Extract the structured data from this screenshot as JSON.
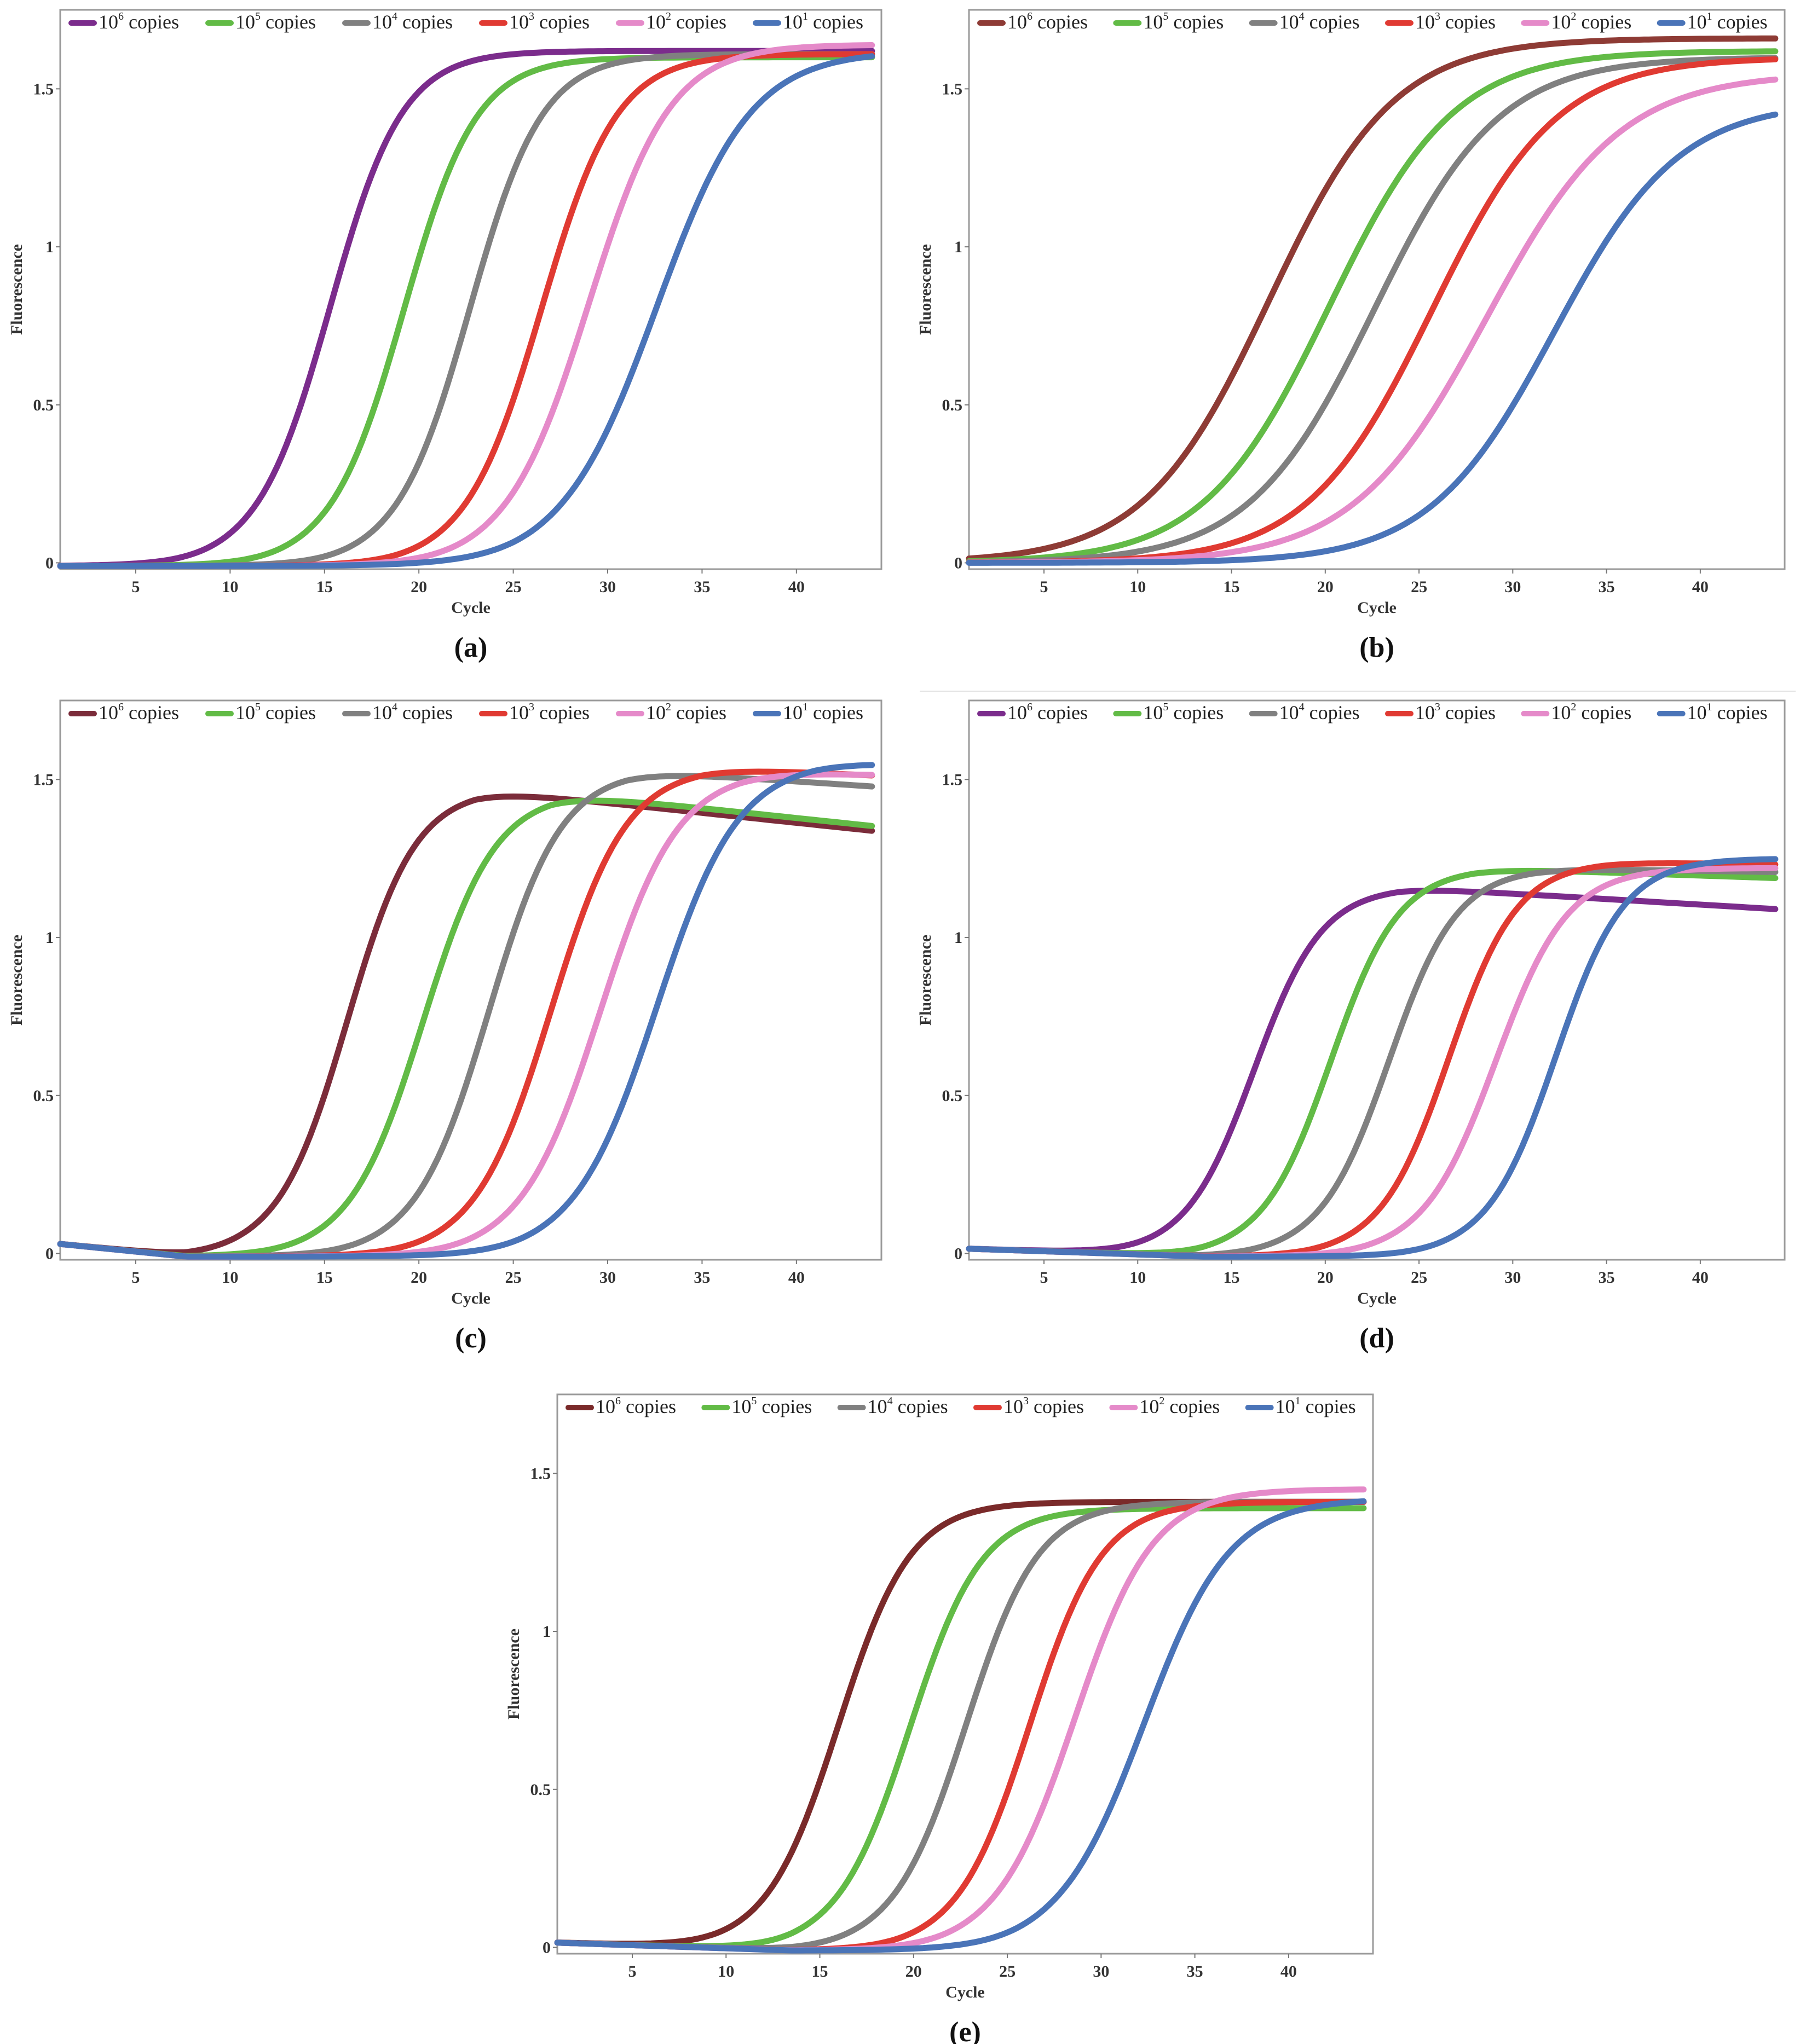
{
  "chart_data": [
    {
      "type": "line",
      "panel_label": "(a)",
      "xlabel": "Cycle",
      "ylabel": "Fluorescence",
      "xlim": [
        1,
        44.5
      ],
      "ylim": [
        -0.02,
        1.75
      ],
      "xticks": [
        5,
        10,
        15,
        20,
        25,
        30,
        35,
        40
      ],
      "xtick_labels": [
        "5",
        "10",
        "15",
        "20",
        "25",
        "30",
        "35",
        "40"
      ],
      "yticks": [
        0,
        0.5,
        1,
        1.5
      ],
      "ytick_labels": [
        "0",
        "0.5",
        "1",
        "1.5"
      ],
      "legend": "top",
      "series": [
        {
          "name": "10⁶ copies",
          "base": "10",
          "exp": "6",
          "label_suffix": " copies",
          "color": "#7b2c8c",
          "ct": 15.3,
          "k": 0.52,
          "plateau": 1.62,
          "y0": -0.01,
          "slope": 0.0
        },
        {
          "name": "10⁵ copies",
          "base": "10",
          "exp": "5",
          "label_suffix": " copies",
          "color": "#62bb46",
          "ct": 19.2,
          "k": 0.52,
          "plateau": 1.6,
          "y0": -0.01,
          "slope": 0.0
        },
        {
          "name": "10⁴ copies",
          "base": "10",
          "exp": "4",
          "label_suffix": " copies",
          "color": "#808080",
          "ct": 22.7,
          "k": 0.52,
          "plateau": 1.61,
          "y0": -0.01,
          "slope": 0.0
        },
        {
          "name": "10³ copies",
          "base": "10",
          "exp": "3",
          "label_suffix": " copies",
          "color": "#e03a32",
          "ct": 26.5,
          "k": 0.5,
          "plateau": 1.61,
          "y0": -0.01,
          "slope": 0.0
        },
        {
          "name": "10² copies",
          "base": "10",
          "exp": "2",
          "label_suffix": " copies",
          "color": "#e58ac9",
          "ct": 29.0,
          "k": 0.46,
          "plateau": 1.64,
          "y0": -0.01,
          "slope": 0.0
        },
        {
          "name": "10¹ copies",
          "base": "10",
          "exp": "1",
          "label_suffix": " copies",
          "color": "#4a74b8",
          "ct": 32.6,
          "k": 0.4,
          "plateau": 1.62,
          "y0": -0.01,
          "slope": 0.0
        }
      ]
    },
    {
      "type": "line",
      "panel_label": "(b)",
      "xlabel": "Cycle",
      "ylabel": "Fluorescence",
      "xlim": [
        1,
        44.5
      ],
      "ylim": [
        -0.02,
        1.75
      ],
      "xticks": [
        5,
        10,
        15,
        20,
        25,
        30,
        35,
        40
      ],
      "xtick_labels": [
        "5",
        "10",
        "15",
        "20",
        "25",
        "30",
        "35",
        "40"
      ],
      "yticks": [
        0,
        0.5,
        1,
        1.5
      ],
      "ytick_labels": [
        "0",
        "0.5",
        "1",
        "1.5"
      ],
      "legend": "top",
      "series": [
        {
          "name": "10⁶ copies",
          "base": "10",
          "exp": "6",
          "label_suffix": " copies",
          "color": "#8e3b35",
          "ct": 17.0,
          "k": 0.3,
          "plateau": 1.66,
          "y0": 0.0,
          "slope": 0.0
        },
        {
          "name": "10⁵ copies",
          "base": "10",
          "exp": "5",
          "label_suffix": " copies",
          "color": "#62bb46",
          "ct": 20.2,
          "k": 0.3,
          "plateau": 1.62,
          "y0": 0.0,
          "slope": 0.0
        },
        {
          "name": "10⁴ copies",
          "base": "10",
          "exp": "4",
          "label_suffix": " copies",
          "color": "#808080",
          "ct": 22.6,
          "k": 0.3,
          "plateau": 1.6,
          "y0": 0.0,
          "slope": 0.0
        },
        {
          "name": "10³ copies",
          "base": "10",
          "exp": "3",
          "label_suffix": " copies",
          "color": "#e03a32",
          "ct": 25.7,
          "k": 0.3,
          "plateau": 1.6,
          "y0": 0.0,
          "slope": 0.0
        },
        {
          "name": "10² copies",
          "base": "10",
          "exp": "2",
          "label_suffix": " copies",
          "color": "#e58ac9",
          "ct": 28.6,
          "k": 0.28,
          "plateau": 1.55,
          "y0": 0.0,
          "slope": 0.0
        },
        {
          "name": "10¹ copies",
          "base": "10",
          "exp": "1",
          "label_suffix": " copies",
          "color": "#4a74b8",
          "ct": 32.2,
          "k": 0.3,
          "plateau": 1.46,
          "y0": 0.0,
          "slope": 0.0
        }
      ]
    },
    {
      "type": "line",
      "panel_label": "(c)",
      "xlabel": "Cycle",
      "ylabel": "Fluorescence",
      "xlim": [
        1,
        44.5
      ],
      "ylim": [
        -0.02,
        1.75
      ],
      "xticks": [
        5,
        10,
        15,
        20,
        25,
        30,
        35,
        40
      ],
      "xtick_labels": [
        "5",
        "10",
        "15",
        "20",
        "25",
        "30",
        "35",
        "40"
      ],
      "yticks": [
        0,
        0.5,
        1,
        1.5
      ],
      "ytick_labels": [
        "0",
        "0.5",
        "1",
        "1.5"
      ],
      "legend": "top",
      "series": [
        {
          "name": "10⁶ copies",
          "base": "10",
          "exp": "6",
          "label_suffix": " copies",
          "color": "#7b2c3a",
          "ct": 16.2,
          "k": 0.55,
          "plateau": 1.47,
          "y0": 0.03,
          "slope": -0.006,
          "decay": 0.0063,
          "decay_start": 23
        },
        {
          "name": "10⁵ copies",
          "base": "10",
          "exp": "5",
          "label_suffix": " copies",
          "color": "#62bb46",
          "ct": 20.2,
          "k": 0.52,
          "plateau": 1.46,
          "y0": 0.03,
          "slope": -0.006,
          "decay": 0.0063,
          "decay_start": 27
        },
        {
          "name": "10⁴ copies",
          "base": "10",
          "exp": "4",
          "label_suffix": " copies",
          "color": "#808080",
          "ct": 23.7,
          "k": 0.52,
          "plateau": 1.53,
          "y0": 0.03,
          "slope": -0.006,
          "decay": 0.004,
          "decay_start": 31
        },
        {
          "name": "10³ copies",
          "base": "10",
          "exp": "3",
          "label_suffix": " copies",
          "color": "#e03a32",
          "ct": 27.0,
          "k": 0.5,
          "plateau": 1.54,
          "y0": 0.03,
          "slope": -0.006,
          "decay": 0.003,
          "decay_start": 35
        },
        {
          "name": "10² copies",
          "base": "10",
          "exp": "2",
          "label_suffix": " copies",
          "color": "#e58ac9",
          "ct": 29.6,
          "k": 0.48,
          "plateau": 1.53,
          "y0": 0.03,
          "slope": -0.006,
          "decay": 0.002,
          "decay_start": 37
        },
        {
          "name": "10¹ copies",
          "base": "10",
          "exp": "1",
          "label_suffix": " copies",
          "color": "#4a74b8",
          "ct": 32.6,
          "k": 0.46,
          "plateau": 1.56,
          "y0": 0.03,
          "slope": -0.006,
          "decay": 0.002,
          "decay_start": 41
        }
      ]
    },
    {
      "type": "line",
      "panel_label": "(d)",
      "xlabel": "Cycle",
      "ylabel": "Fluorescence",
      "xlim": [
        1,
        44.5
      ],
      "ylim": [
        -0.02,
        1.75
      ],
      "xticks": [
        5,
        10,
        15,
        20,
        25,
        30,
        35,
        40
      ],
      "xtick_labels": [
        "5",
        "10",
        "15",
        "20",
        "25",
        "30",
        "35",
        "40"
      ],
      "yticks": [
        0,
        0.5,
        1,
        1.5
      ],
      "ytick_labels": [
        "0",
        "0.5",
        "1",
        "1.5"
      ],
      "legend": "top",
      "series": [
        {
          "name": "10⁶ copies",
          "base": "10",
          "exp": "6",
          "label_suffix": " copies",
          "color": "#7b2c8c",
          "ct": 16.2,
          "k": 0.55,
          "plateau": 1.16,
          "y0": 0.015,
          "slope": -0.002,
          "decay": 0.0035,
          "decay_start": 24
        },
        {
          "name": "10⁵ copies",
          "base": "10",
          "exp": "5",
          "label_suffix": " copies",
          "color": "#62bb46",
          "ct": 20.3,
          "k": 0.55,
          "plateau": 1.22,
          "y0": 0.015,
          "slope": -0.002,
          "decay": 0.002,
          "decay_start": 28
        },
        {
          "name": "10⁴ copies",
          "base": "10",
          "exp": "4",
          "label_suffix": " copies",
          "color": "#808080",
          "ct": 23.4,
          "k": 0.55,
          "plateau": 1.22,
          "y0": 0.015,
          "slope": -0.002,
          "decay": 0.001,
          "decay_start": 31
        },
        {
          "name": "10³ copies",
          "base": "10",
          "exp": "3",
          "label_suffix": " copies",
          "color": "#e03a32",
          "ct": 26.6,
          "k": 0.55,
          "plateau": 1.24,
          "y0": 0.015,
          "slope": -0.002,
          "decay": 0.001,
          "decay_start": 35
        },
        {
          "name": "10² copies",
          "base": "10",
          "exp": "2",
          "label_suffix": " copies",
          "color": "#e58ac9",
          "ct": 29.1,
          "k": 0.52,
          "plateau": 1.22,
          "y0": 0.015,
          "slope": -0.002,
          "decay": 0.0,
          "decay_start": 44
        },
        {
          "name": "10¹ copies",
          "base": "10",
          "exp": "1",
          "label_suffix": " copies",
          "color": "#4a74b8",
          "ct": 32.3,
          "k": 0.55,
          "plateau": 1.25,
          "y0": 0.015,
          "slope": -0.002,
          "decay": 0.0,
          "decay_start": 44
        }
      ]
    },
    {
      "type": "line",
      "panel_label": "(e)",
      "xlabel": "Cycle",
      "ylabel": "Fluorescence",
      "xlim": [
        1,
        44.5
      ],
      "ylim": [
        -0.02,
        1.75
      ],
      "xticks": [
        5,
        10,
        15,
        20,
        25,
        30,
        35,
        40
      ],
      "xtick_labels": [
        "5",
        "10",
        "15",
        "20",
        "25",
        "30",
        "35",
        "40"
      ],
      "yticks": [
        0,
        0.5,
        1,
        1.5
      ],
      "ytick_labels": [
        "0",
        "0.5",
        "1",
        "1.5"
      ],
      "legend": "top",
      "series": [
        {
          "name": "10⁶ copies",
          "base": "10",
          "exp": "6",
          "label_suffix": " copies",
          "color": "#7a2a2a",
          "ct": 16.0,
          "k": 0.52,
          "plateau": 1.41,
          "y0": 0.015,
          "slope": -0.002
        },
        {
          "name": "10⁵ copies",
          "base": "10",
          "exp": "5",
          "label_suffix": " copies",
          "color": "#62bb46",
          "ct": 19.8,
          "k": 0.52,
          "plateau": 1.39,
          "y0": 0.015,
          "slope": -0.002
        },
        {
          "name": "10⁴ copies",
          "base": "10",
          "exp": "4",
          "label_suffix": " copies",
          "color": "#808080",
          "ct": 22.8,
          "k": 0.52,
          "plateau": 1.41,
          "y0": 0.015,
          "slope": -0.002
        },
        {
          "name": "10³ copies",
          "base": "10",
          "exp": "3",
          "label_suffix": " copies",
          "color": "#e03a32",
          "ct": 26.2,
          "k": 0.52,
          "plateau": 1.41,
          "y0": 0.015,
          "slope": -0.002
        },
        {
          "name": "10² copies",
          "base": "10",
          "exp": "2",
          "label_suffix": " copies",
          "color": "#e58ac9",
          "ct": 28.6,
          "k": 0.48,
          "plateau": 1.45,
          "y0": 0.015,
          "slope": -0.002
        },
        {
          "name": "10¹ copies",
          "base": "10",
          "exp": "1",
          "label_suffix": " copies",
          "color": "#4a74b8",
          "ct": 32.3,
          "k": 0.44,
          "plateau": 1.42,
          "y0": 0.015,
          "slope": -0.002
        }
      ]
    }
  ]
}
